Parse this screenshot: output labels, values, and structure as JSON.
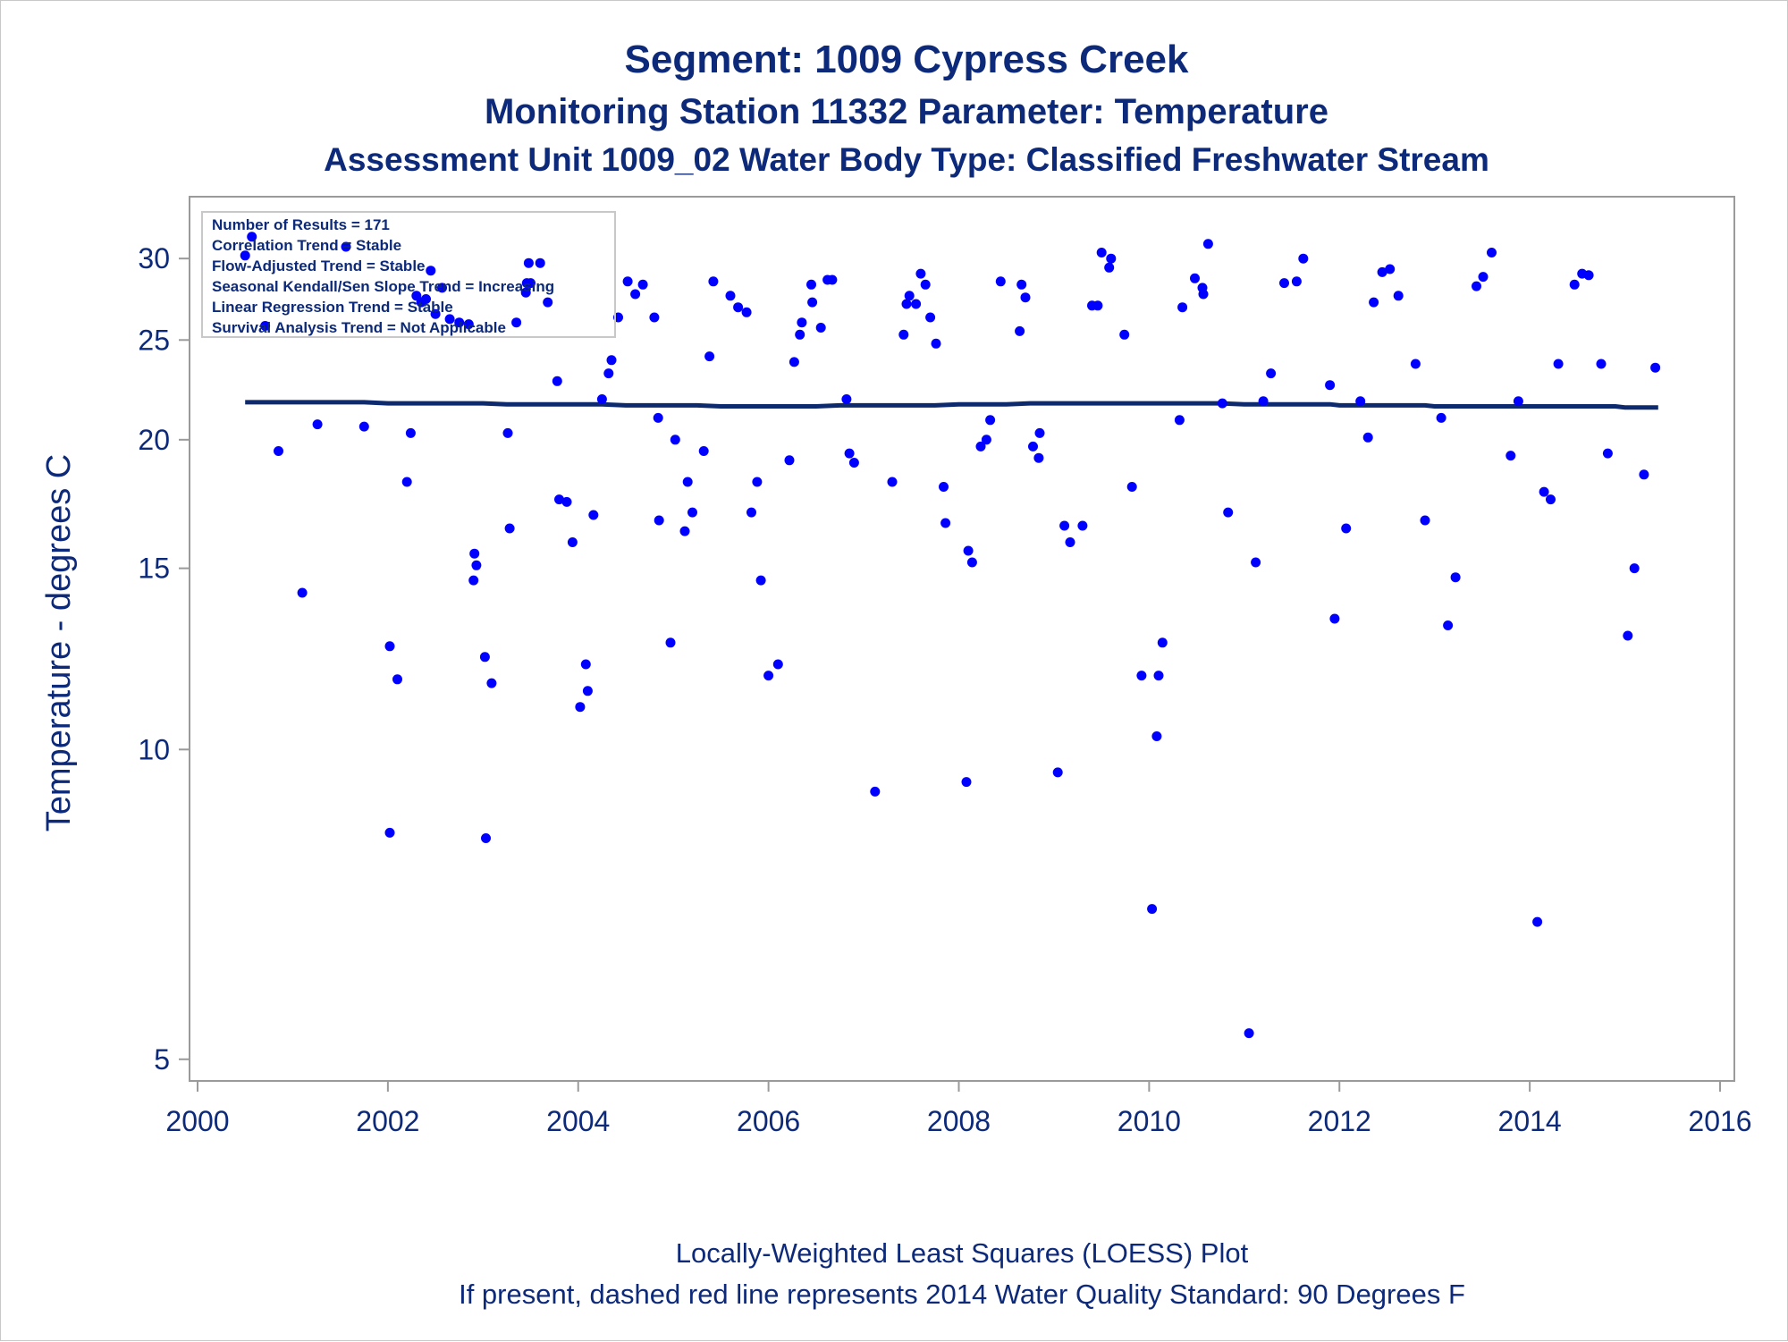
{
  "chart_data": {
    "type": "scatter",
    "title": "Segment: 1009  Cypress Creek",
    "subtitle": "Monitoring Station 11332 Parameter: Temperature",
    "subtitle2": "Assessment Unit 1009_02   Water Body Type: Classified Freshwater Stream",
    "ylabel": "Temperature - degrees C",
    "xlabel": "",
    "yscale": "log",
    "ylim": [
      4.85,
      33.5
    ],
    "xlim": [
      2000,
      2016
    ],
    "x_ticks": [
      "2000",
      "2002",
      "2004",
      "2006",
      "2008",
      "2010",
      "2012",
      "2014",
      "2016"
    ],
    "y_ticks": [
      "5",
      "10",
      "15",
      "20",
      "25",
      "30"
    ],
    "grid": false,
    "point_color": "#0000ff",
    "line_color": "#0d2a6e",
    "stats_box": [
      "Number of Results = 171",
      "Correlation Trend = Stable",
      "Flow-Adjusted Trend = Stable",
      "Seasonal Kendall/Sen Slope Trend = Increasing",
      "Linear Regression Trend = Stable",
      "Survival Analysis Trend = Not Applicable"
    ],
    "footnotes": [
      "Locally-Weighted Least Squares (LOESS) Plot",
      "If present, dashed red line represents 2014 Water Quality Standard: 90   Degrees F"
    ],
    "series": [
      {
        "type": "scatter",
        "points": [
          [
            2000.57,
            31.5
          ],
          [
            2000.5,
            30.2
          ],
          [
            2000.71,
            25.8
          ],
          [
            2000.85,
            19.5
          ],
          [
            2001.1,
            14.2
          ],
          [
            2001.26,
            20.7
          ],
          [
            2001.56,
            30.8
          ],
          [
            2001.75,
            20.6
          ],
          [
            2002.02,
            12.6
          ],
          [
            2002.02,
            8.3
          ],
          [
            2002.1,
            11.7
          ],
          [
            2002.2,
            18.2
          ],
          [
            2002.24,
            20.3
          ],
          [
            2002.3,
            27.6
          ],
          [
            2002.35,
            27.2
          ],
          [
            2002.4,
            27.4
          ],
          [
            2002.45,
            29.2
          ],
          [
            2002.5,
            26.5
          ],
          [
            2002.57,
            28.1
          ],
          [
            2002.65,
            26.2
          ],
          [
            2002.75,
            26.0
          ],
          [
            2002.85,
            25.9
          ],
          [
            2002.9,
            14.6
          ],
          [
            2002.91,
            15.5
          ],
          [
            2002.93,
            15.1
          ],
          [
            2003.02,
            12.3
          ],
          [
            2003.03,
            8.2
          ],
          [
            2003.09,
            11.6
          ],
          [
            2003.26,
            20.3
          ],
          [
            2003.28,
            16.4
          ],
          [
            2003.35,
            26.0
          ],
          [
            2003.45,
            27.8
          ],
          [
            2003.46,
            28.4
          ],
          [
            2003.5,
            28.4
          ],
          [
            2003.48,
            29.7
          ],
          [
            2003.6,
            29.7
          ],
          [
            2003.68,
            27.2
          ],
          [
            2003.78,
            22.8
          ],
          [
            2003.8,
            17.5
          ],
          [
            2003.88,
            17.4
          ],
          [
            2003.94,
            15.9
          ],
          [
            2004.02,
            11.0
          ],
          [
            2004.08,
            12.1
          ],
          [
            2004.1,
            11.4
          ],
          [
            2004.16,
            16.9
          ],
          [
            2004.25,
            21.9
          ],
          [
            2004.32,
            23.2
          ],
          [
            2004.35,
            23.9
          ],
          [
            2004.42,
            26.3
          ],
          [
            2004.52,
            28.5
          ],
          [
            2004.6,
            27.7
          ],
          [
            2004.68,
            28.3
          ],
          [
            2004.8,
            26.3
          ],
          [
            2004.85,
            16.7
          ],
          [
            2004.84,
            21.0
          ],
          [
            2004.97,
            12.7
          ],
          [
            2005.02,
            20.0
          ],
          [
            2005.12,
            16.3
          ],
          [
            2005.15,
            18.2
          ],
          [
            2005.2,
            17.0
          ],
          [
            2005.32,
            19.5
          ],
          [
            2005.38,
            24.1
          ],
          [
            2005.42,
            28.5
          ],
          [
            2005.6,
            27.6
          ],
          [
            2005.68,
            26.9
          ],
          [
            2005.77,
            26.6
          ],
          [
            2005.82,
            17.0
          ],
          [
            2005.88,
            18.2
          ],
          [
            2005.92,
            14.6
          ],
          [
            2006.0,
            11.8
          ],
          [
            2006.1,
            12.1
          ],
          [
            2006.22,
            19.1
          ],
          [
            2006.27,
            23.8
          ],
          [
            2006.33,
            25.3
          ],
          [
            2006.35,
            26.0
          ],
          [
            2006.45,
            28.3
          ],
          [
            2006.46,
            27.2
          ],
          [
            2006.55,
            25.7
          ],
          [
            2006.62,
            28.6
          ],
          [
            2006.67,
            28.6
          ],
          [
            2006.82,
            21.9
          ],
          [
            2006.85,
            19.4
          ],
          [
            2006.9,
            19.0
          ],
          [
            2007.12,
            9.1
          ],
          [
            2007.3,
            18.2
          ],
          [
            2007.42,
            25.3
          ],
          [
            2007.45,
            27.1
          ],
          [
            2007.48,
            27.6
          ],
          [
            2007.55,
            27.1
          ],
          [
            2007.6,
            29.0
          ],
          [
            2007.65,
            28.3
          ],
          [
            2007.7,
            26.3
          ],
          [
            2007.76,
            24.8
          ],
          [
            2007.84,
            18.0
          ],
          [
            2007.86,
            16.6
          ],
          [
            2008.08,
            9.3
          ],
          [
            2008.1,
            15.6
          ],
          [
            2008.14,
            15.2
          ],
          [
            2008.23,
            19.7
          ],
          [
            2008.29,
            20.0
          ],
          [
            2008.33,
            20.9
          ],
          [
            2008.44,
            28.5
          ],
          [
            2008.64,
            25.5
          ],
          [
            2008.66,
            28.3
          ],
          [
            2008.7,
            27.5
          ],
          [
            2008.78,
            19.7
          ],
          [
            2008.84,
            19.2
          ],
          [
            2008.85,
            20.3
          ],
          [
            2009.04,
            9.5
          ],
          [
            2009.11,
            16.5
          ],
          [
            2009.17,
            15.9
          ],
          [
            2009.3,
            16.5
          ],
          [
            2009.4,
            27.0
          ],
          [
            2009.46,
            27.0
          ],
          [
            2009.5,
            30.4
          ],
          [
            2009.58,
            29.4
          ],
          [
            2009.6,
            30.0
          ],
          [
            2009.74,
            25.3
          ],
          [
            2009.82,
            18.0
          ],
          [
            2009.92,
            11.8
          ],
          [
            2010.03,
            7.0
          ],
          [
            2010.08,
            10.3
          ],
          [
            2010.1,
            11.8
          ],
          [
            2010.14,
            12.7
          ],
          [
            2010.32,
            20.9
          ],
          [
            2010.35,
            26.9
          ],
          [
            2010.48,
            28.7
          ],
          [
            2010.56,
            28.1
          ],
          [
            2010.57,
            27.7
          ],
          [
            2010.62,
            31.0
          ],
          [
            2010.77,
            21.7
          ],
          [
            2010.83,
            17.0
          ],
          [
            2011.05,
            5.3
          ],
          [
            2011.12,
            15.2
          ],
          [
            2011.2,
            21.8
          ],
          [
            2011.28,
            23.2
          ],
          [
            2011.42,
            28.4
          ],
          [
            2011.55,
            28.5
          ],
          [
            2011.62,
            30.0
          ],
          [
            2011.9,
            22.6
          ],
          [
            2011.95,
            13.4
          ],
          [
            2012.07,
            16.4
          ],
          [
            2012.22,
            21.8
          ],
          [
            2012.3,
            20.1
          ],
          [
            2012.36,
            27.2
          ],
          [
            2012.45,
            29.1
          ],
          [
            2012.53,
            29.3
          ],
          [
            2012.62,
            27.6
          ],
          [
            2012.8,
            23.7
          ],
          [
            2012.9,
            16.7
          ],
          [
            2013.07,
            21.0
          ],
          [
            2013.14,
            13.2
          ],
          [
            2013.22,
            14.7
          ],
          [
            2013.44,
            28.2
          ],
          [
            2013.51,
            28.8
          ],
          [
            2013.6,
            30.4
          ],
          [
            2013.8,
            19.3
          ],
          [
            2013.88,
            21.8
          ],
          [
            2014.08,
            6.8
          ],
          [
            2014.15,
            17.8
          ],
          [
            2014.22,
            17.5
          ],
          [
            2014.3,
            23.7
          ],
          [
            2014.47,
            28.3
          ],
          [
            2014.55,
            29.0
          ],
          [
            2014.62,
            28.9
          ],
          [
            2014.75,
            23.7
          ],
          [
            2014.82,
            19.4
          ],
          [
            2015.03,
            12.9
          ],
          [
            2015.1,
            15.0
          ],
          [
            2015.2,
            18.5
          ],
          [
            2015.32,
            23.5
          ]
        ]
      },
      {
        "type": "line",
        "points": [
          [
            2000.5,
            21.75
          ],
          [
            2001.0,
            21.75
          ],
          [
            2001.5,
            21.75
          ],
          [
            2001.75,
            21.75
          ],
          [
            2002.0,
            21.7
          ],
          [
            2002.5,
            21.7
          ],
          [
            2003.0,
            21.7
          ],
          [
            2003.25,
            21.65
          ],
          [
            2003.5,
            21.65
          ],
          [
            2004.0,
            21.65
          ],
          [
            2004.25,
            21.65
          ],
          [
            2004.5,
            21.6
          ],
          [
            2005.0,
            21.6
          ],
          [
            2005.25,
            21.6
          ],
          [
            2005.5,
            21.55
          ],
          [
            2006.0,
            21.55
          ],
          [
            2006.5,
            21.55
          ],
          [
            2006.75,
            21.6
          ],
          [
            2007.0,
            21.6
          ],
          [
            2007.5,
            21.6
          ],
          [
            2007.75,
            21.6
          ],
          [
            2008.0,
            21.65
          ],
          [
            2008.5,
            21.65
          ],
          [
            2008.75,
            21.7
          ],
          [
            2009.0,
            21.7
          ],
          [
            2009.5,
            21.7
          ],
          [
            2010.0,
            21.7
          ],
          [
            2010.5,
            21.7
          ],
          [
            2010.75,
            21.7
          ],
          [
            2011.0,
            21.65
          ],
          [
            2011.5,
            21.65
          ],
          [
            2011.9,
            21.65
          ],
          [
            2012.0,
            21.6
          ],
          [
            2012.5,
            21.6
          ],
          [
            2012.9,
            21.6
          ],
          [
            2013.0,
            21.55
          ],
          [
            2013.5,
            21.55
          ],
          [
            2014.0,
            21.55
          ],
          [
            2014.5,
            21.55
          ],
          [
            2014.9,
            21.55
          ],
          [
            2015.0,
            21.5
          ],
          [
            2015.35,
            21.5
          ]
        ]
      }
    ]
  }
}
